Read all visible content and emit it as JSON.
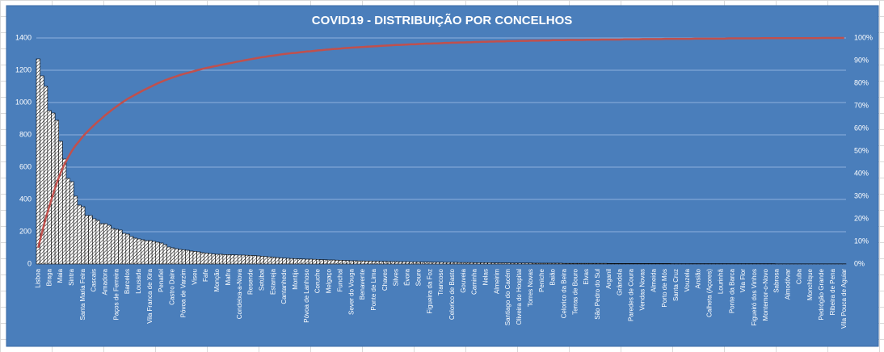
{
  "chart_data": {
    "type": "bar",
    "title": "COVID19 - DISTRIBUIÇÃO POR CONCELHOS",
    "categories": [
      "Lisboa",
      null,
      null,
      "Braga",
      null,
      null,
      "Maia",
      null,
      null,
      "Sintra",
      null,
      null,
      "Santa Maria Feira",
      null,
      null,
      "Cascais",
      null,
      null,
      "Amadora",
      null,
      null,
      "Paços de Ferreira",
      null,
      null,
      "Barcelos",
      null,
      null,
      "Lousada",
      null,
      null,
      "Vila Franca de Xira",
      null,
      null,
      "Penafiel",
      null,
      null,
      "Castro Daire",
      null,
      null,
      "Póvoa de Varzim",
      null,
      null,
      "Viseu",
      null,
      null,
      "Fafe",
      null,
      null,
      "Monção",
      null,
      null,
      "Mafra",
      null,
      null,
      "Condeixa-a-Nova",
      null,
      null,
      "Resende",
      null,
      null,
      "Setúbal",
      null,
      null,
      "Estarreja",
      null,
      null,
      "Cantanhede",
      null,
      null,
      "Montijo",
      null,
      null,
      "Póvoa de Lanhoso",
      null,
      null,
      "Coruche",
      null,
      null,
      "Melgaço",
      null,
      null,
      "Funchal",
      null,
      null,
      "Sever do Vouga",
      null,
      null,
      "Benavente",
      null,
      null,
      "Ponte de Lima",
      null,
      null,
      "Chaves",
      null,
      null,
      "Silves",
      null,
      null,
      "Évora",
      null,
      null,
      "Soure",
      null,
      null,
      "Figueira da Foz",
      null,
      null,
      "Trancoso",
      null,
      null,
      "Celorico de Basto",
      null,
      null,
      "Gouveia",
      null,
      null,
      "Caminha",
      null,
      null,
      "Nelas",
      null,
      null,
      "Almeirim",
      null,
      null,
      "Santiago do Cacém",
      null,
      null,
      "Oliveira do Hospital",
      null,
      null,
      "Torres Novas",
      null,
      null,
      "Peniche",
      null,
      null,
      "Baião",
      null,
      null,
      "Celorico da Beira",
      null,
      null,
      "Terras de Bouro",
      null,
      null,
      "Elvas",
      null,
      null,
      "São Pedro do Sul",
      null,
      null,
      "Arganil",
      null,
      null,
      "Grândola",
      null,
      null,
      "Paredes de Coura",
      null,
      null,
      "Vendas Novas",
      null,
      null,
      "Almeida",
      null,
      null,
      "Porto de Mós",
      null,
      null,
      "Santa Cruz",
      null,
      null,
      "Vouzela",
      null,
      null,
      "Ansião",
      null,
      null,
      "Calheta (Açores)",
      null,
      null,
      "Lourinhã",
      null,
      null,
      "Ponte da Barca",
      null,
      null,
      "Vila Flor",
      null,
      null,
      "Figueiró dos Vinhos",
      null,
      null,
      "Montemor-o-Novo",
      null,
      null,
      "Sabrosa",
      null,
      null,
      "Almodôvar",
      null,
      null,
      "Cuba",
      null,
      null,
      "Monchique",
      null,
      null,
      "Pedrógão Grande",
      null,
      null,
      "Ribeira de Pena",
      null,
      null,
      "Vila Pouca de Aguiar"
    ],
    "series": [
      {
        "type": "bar",
        "color": "#ffffff",
        "values": [
          1270,
          1165,
          1100,
          950,
          935,
          890,
          760,
          650,
          530,
          510,
          420,
          365,
          355,
          300,
          300,
          280,
          270,
          250,
          250,
          240,
          220,
          215,
          210,
          190,
          185,
          170,
          160,
          155,
          150,
          145,
          145,
          140,
          135,
          130,
          120,
          105,
          100,
          95,
          90,
          88,
          85,
          80,
          78,
          75,
          70,
          68,
          65,
          62,
          60,
          60,
          58,
          58,
          57,
          56,
          55,
          55,
          54,
          53,
          52,
          50,
          48,
          46,
          44,
          42,
          40,
          38,
          36,
          35,
          34,
          33,
          32,
          31,
          30,
          30,
          29,
          28,
          27,
          26,
          25,
          25,
          24,
          23,
          22,
          21,
          20,
          20,
          19,
          19,
          18,
          18,
          17,
          17,
          16,
          16,
          15,
          15,
          15,
          14,
          14,
          14,
          13,
          13,
          13,
          12,
          12,
          12,
          11,
          11,
          11,
          10,
          10,
          10,
          10,
          9,
          9,
          9,
          9,
          8,
          8,
          8,
          8,
          8,
          7,
          7,
          7,
          7,
          7,
          6,
          6,
          6,
          6,
          6,
          6,
          5,
          5,
          5,
          5,
          5,
          5,
          5,
          5,
          4,
          4,
          4,
          4,
          4,
          4,
          4,
          4,
          4,
          4,
          4,
          4,
          3,
          3,
          3,
          3,
          3,
          3,
          3,
          3,
          3,
          3,
          3,
          3,
          3,
          3,
          3,
          3,
          3,
          2,
          2,
          2,
          2,
          2,
          2,
          2,
          2,
          2,
          2,
          2,
          2,
          2,
          2,
          2,
          2,
          2,
          2,
          2,
          2,
          2,
          2,
          2,
          2,
          2,
          2,
          2,
          2,
          1,
          1,
          1,
          1,
          1,
          1,
          1,
          1,
          1,
          1,
          1,
          1,
          1,
          1,
          1,
          1,
          1,
          1,
          1
        ]
      },
      {
        "type": "line",
        "axis": "y2",
        "color": "#c0504d",
        "values": [
          7.2,
          13.9,
          20.2,
          25.6,
          30.9,
          36.0,
          40.3,
          44.0,
          47.1,
          50.0,
          52.4,
          54.4,
          56.5,
          58.2,
          59.9,
          61.5,
          63.0,
          64.4,
          65.9,
          67.2,
          68.5,
          69.7,
          70.9,
          72.0,
          73.1,
          74.0,
          74.9,
          75.8,
          76.7,
          77.5,
          78.3,
          79.1,
          79.9,
          80.6,
          81.3,
          81.9,
          82.5,
          83.0,
          83.6,
          84.1,
          84.5,
          85.0,
          85.4,
          85.9,
          86.3,
          86.7,
          87.0,
          87.4,
          87.7,
          88.1,
          88.4,
          88.7,
          89.0,
          89.4,
          89.7,
          90.0,
          90.3,
          90.6,
          90.9,
          91.2,
          91.5,
          91.7,
          92.0,
          92.2,
          92.4,
          92.7,
          92.9,
          93.1,
          93.3,
          93.4,
          93.6,
          93.8,
          94.0,
          94.1,
          94.3,
          94.5,
          94.6,
          94.8,
          94.9,
          95.1,
          95.2,
          95.3,
          95.5,
          95.6,
          95.7,
          95.8,
          95.9,
          96.0,
          96.1,
          96.2,
          96.3,
          96.4,
          96.5,
          96.6,
          96.7,
          96.8,
          96.9,
          96.9,
          97.0,
          97.1,
          97.2,
          97.2,
          97.3,
          97.4,
          97.5,
          97.5,
          97.6,
          97.6,
          97.7,
          97.8,
          97.8,
          97.9,
          97.9,
          98.0,
          98.0,
          98.1,
          98.1,
          98.2,
          98.2,
          98.3,
          98.3,
          98.4,
          98.4,
          98.5,
          98.5,
          98.5,
          98.6,
          98.6,
          98.6,
          98.7,
          98.7,
          98.7,
          98.8,
          98.8,
          98.8,
          98.9,
          98.9,
          98.9,
          99.0,
          99.0,
          99.0,
          99.0,
          99.1,
          99.1,
          99.1,
          99.1,
          99.1,
          99.2,
          99.2,
          99.2,
          99.2,
          99.3,
          99.3,
          99.3,
          99.3,
          99.3,
          99.3,
          99.4,
          99.4,
          99.4,
          99.4,
          99.4,
          99.5,
          99.5,
          99.5,
          99.5,
          99.5,
          99.5,
          99.6,
          99.6,
          99.6,
          99.6,
          99.6,
          99.6,
          99.6,
          99.6,
          99.7,
          99.7,
          99.7,
          99.7,
          99.7,
          99.7,
          99.7,
          99.7,
          99.7,
          99.8,
          99.8,
          99.8,
          99.8,
          99.8,
          99.8,
          99.8,
          99.8,
          99.8,
          99.9,
          99.9,
          99.9,
          99.9,
          99.9,
          99.9,
          99.9,
          99.9,
          99.9,
          99.9,
          99.9,
          99.9,
          99.9,
          99.9,
          99.9,
          99.9,
          100.0,
          100.0,
          100.0,
          100.0,
          100.0,
          100.0,
          100.0
        ]
      }
    ],
    "ylim": [
      0,
      1400
    ],
    "yticks": [
      0,
      200,
      400,
      600,
      800,
      1000,
      1200,
      1400
    ],
    "y2lim": [
      0,
      100
    ],
    "y2ticks": [
      {
        "value": 0,
        "label": "0%"
      },
      {
        "value": 10,
        "label": "10%"
      },
      {
        "value": 20,
        "label": "20%"
      },
      {
        "value": 30,
        "label": "30%"
      },
      {
        "value": 40,
        "label": "40%"
      },
      {
        "value": 50,
        "label": "50%"
      },
      {
        "value": 60,
        "label": "60%"
      },
      {
        "value": 70,
        "label": "70%"
      },
      {
        "value": 80,
        "label": "80%"
      },
      {
        "value": 90,
        "label": "90%"
      },
      {
        "value": 100,
        "label": "100%"
      }
    ],
    "grid": true
  }
}
